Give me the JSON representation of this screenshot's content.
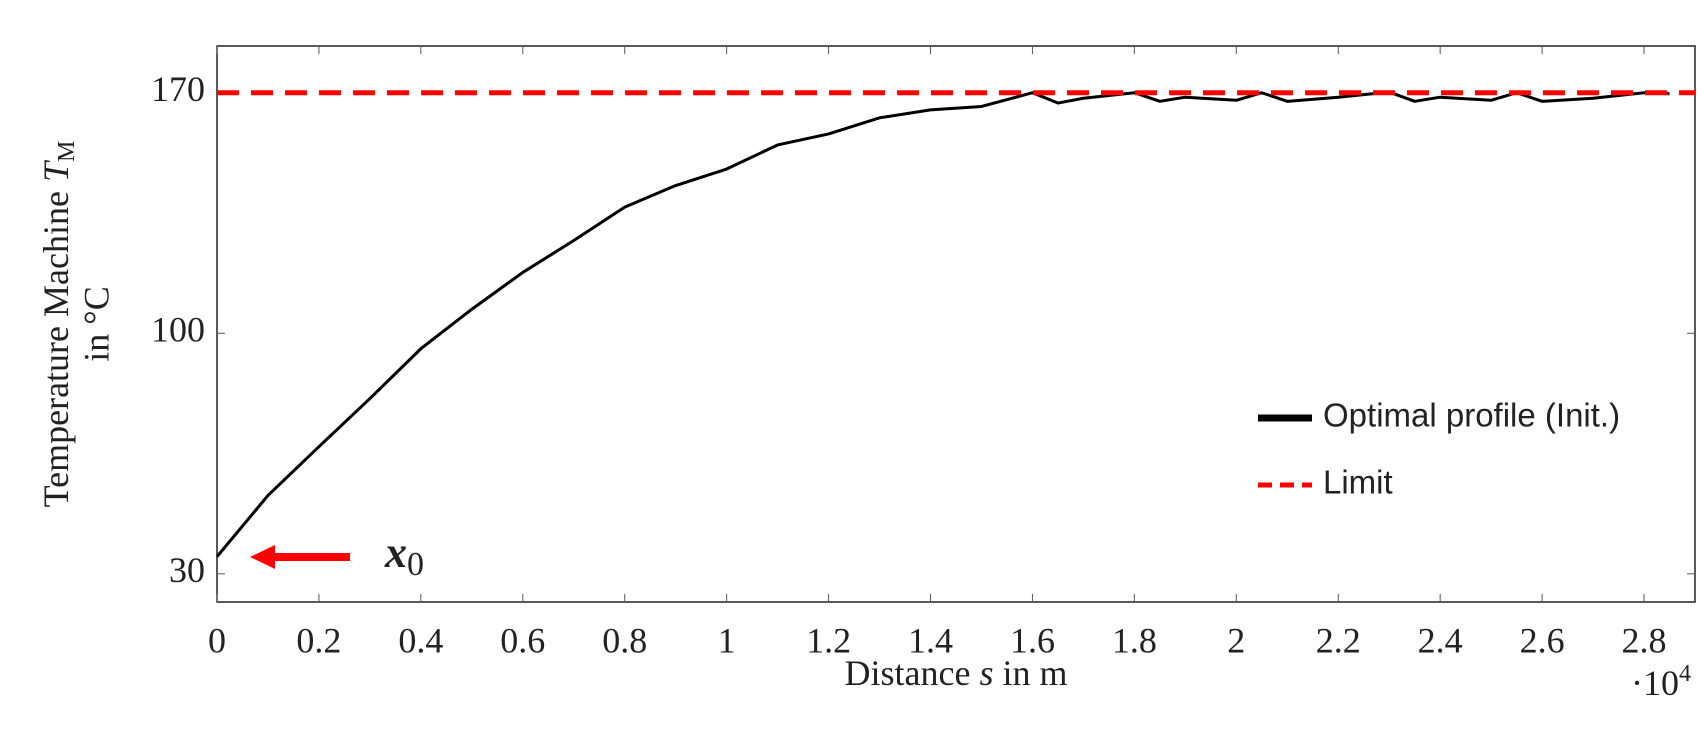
{
  "chart_data": {
    "type": "line",
    "xlabel": {
      "before": "Distance ",
      "var": "s",
      "after": " in m"
    },
    "ylabel": {
      "text": "Temperature Machine ",
      "var": "T",
      "sub": "M",
      "line2": "in °C"
    },
    "x_multiplier": {
      "base": "·10",
      "exp": "4"
    },
    "x": [
      0,
      0.1,
      0.2,
      0.3,
      0.4,
      0.5,
      0.6,
      0.7,
      0.8,
      0.9,
      1.0,
      1.1,
      1.2,
      1.3,
      1.4,
      1.5,
      1.6,
      1.65,
      1.7,
      1.8,
      1.85,
      1.9,
      2.0,
      2.05,
      2.1,
      2.2,
      2.3,
      2.35,
      2.4,
      2.5,
      2.55,
      2.6,
      2.7,
      2.8,
      2.85
    ],
    "series": [
      {
        "name": "Optimal profile (Init.)",
        "color": "#000000",
        "style": "solid",
        "values": [
          35,
          52.8,
          67,
          81,
          95.5,
          107,
          117.7,
          127,
          136.7,
          143,
          147.8,
          154.8,
          158,
          162.7,
          165,
          166,
          170,
          167,
          168.4,
          170,
          167.5,
          168.7,
          167.8,
          170,
          167.5,
          168.7,
          170.2,
          167.5,
          168.7,
          167.8,
          170,
          167.5,
          168.4,
          170,
          169.7
        ]
      },
      {
        "name": "Limit",
        "color": "#ff0000",
        "style": "dashed",
        "hline": 170
      }
    ],
    "annotation": {
      "text": "x",
      "sub": "0",
      "color": "#ff0000"
    },
    "xlim": [
      0,
      2.9
    ],
    "xticks": [
      0,
      0.2,
      0.4,
      0.6,
      0.8,
      1,
      1.2,
      1.4,
      1.6,
      1.8,
      2,
      2.2,
      2.4,
      2.6,
      2.8
    ],
    "ylim": [
      21.8,
      183.6
    ],
    "yticks": [
      30,
      100,
      170
    ],
    "grid": false,
    "legend": "right"
  }
}
